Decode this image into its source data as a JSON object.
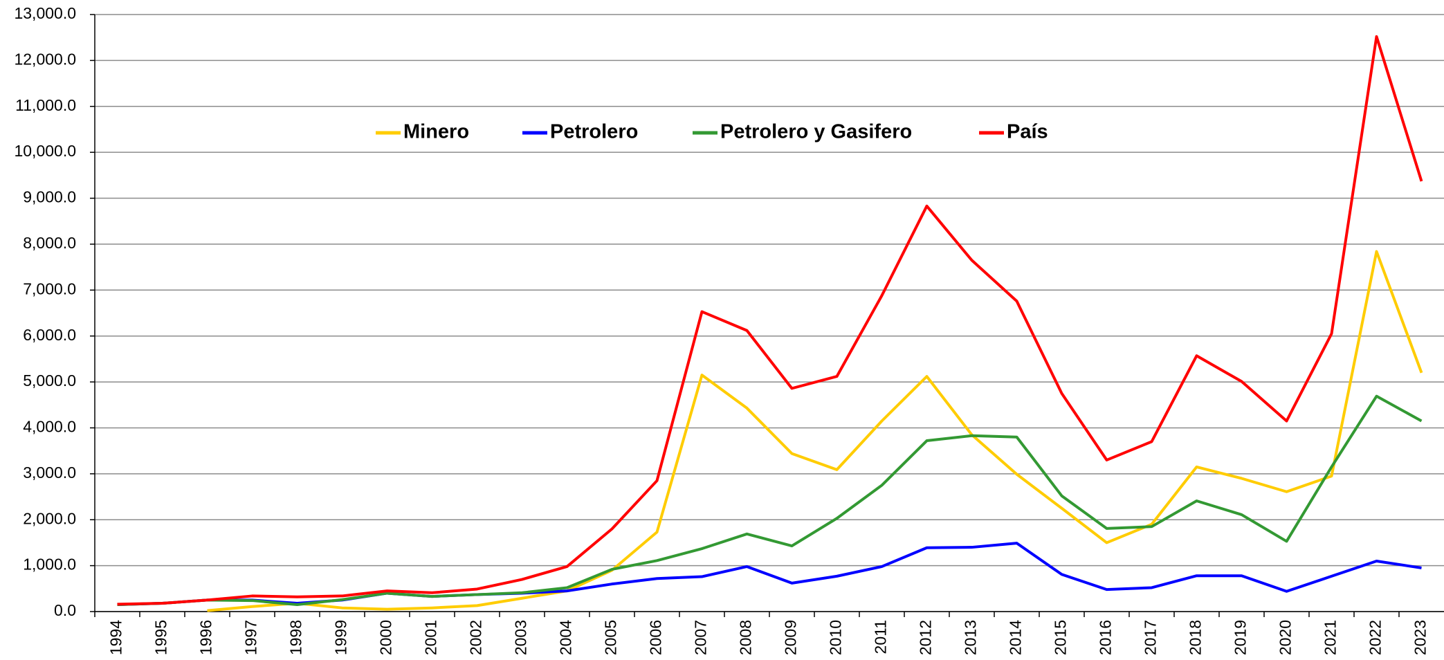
{
  "chart_data": {
    "type": "line",
    "categories": [
      "1994",
      "1995",
      "1996",
      "1997",
      "1998",
      "1999",
      "2000",
      "2001",
      "2002",
      "2003",
      "2004",
      "2005",
      "2006",
      "2007",
      "2008",
      "2009",
      "2010",
      "2011",
      "2012",
      "2013",
      "2014",
      "2015",
      "2016",
      "2017",
      "2018",
      "2019",
      "2020",
      "2021",
      "2022",
      "2023"
    ],
    "series": [
      {
        "name": "Minero",
        "color": "#ffcc00",
        "values": [
          null,
          null,
          20,
          110,
          180,
          80,
          50,
          80,
          130,
          290,
          450,
          900,
          1730,
          5150,
          4430,
          3440,
          3090,
          4150,
          5120,
          3850,
          2990,
          2250,
          1500,
          1900,
          3150,
          2900,
          2610,
          2950,
          7840,
          5200
        ]
      },
      {
        "name": "Petrolero",
        "color": "#0000ff",
        "values": [
          150,
          180,
          250,
          250,
          180,
          250,
          400,
          330,
          370,
          400,
          450,
          600,
          720,
          760,
          980,
          620,
          770,
          980,
          1390,
          1400,
          1490,
          810,
          480,
          520,
          780,
          780,
          440,
          770,
          1100,
          950
        ]
      },
      {
        "name": "Petrolero y Gasifero",
        "color": "#339933",
        "values": [
          150,
          180,
          250,
          240,
          150,
          260,
          400,
          330,
          370,
          410,
          520,
          920,
          1110,
          1370,
          1690,
          1430,
          2030,
          2750,
          3720,
          3830,
          3800,
          2520,
          1810,
          1850,
          2410,
          2110,
          1530,
          3150,
          4690,
          4150
        ]
      },
      {
        "name": "País",
        "color": "#ff0000",
        "values": [
          160,
          180,
          250,
          340,
          320,
          340,
          450,
          410,
          490,
          700,
          980,
          1800,
          2850,
          6530,
          6120,
          4860,
          5120,
          6880,
          8830,
          7650,
          6760,
          4750,
          3300,
          3700,
          5570,
          5010,
          4150,
          6050,
          12520,
          9370
        ]
      }
    ],
    "ylim": [
      0,
      13000
    ],
    "yticks": [
      {
        "value": 0,
        "label": "0.0"
      },
      {
        "value": 1000,
        "label": "1,000.0"
      },
      {
        "value": 2000,
        "label": "2,000.0"
      },
      {
        "value": 3000,
        "label": "3,000.0"
      },
      {
        "value": 4000,
        "label": "4,000.0"
      },
      {
        "value": 5000,
        "label": "5,000.0"
      },
      {
        "value": 6000,
        "label": "6,000.0"
      },
      {
        "value": 7000,
        "label": "7,000.0"
      },
      {
        "value": 8000,
        "label": "8,000.0"
      },
      {
        "value": 9000,
        "label": "9,000.0"
      },
      {
        "value": 10000,
        "label": "10,000.0"
      },
      {
        "value": 11000,
        "label": "11,000.0"
      },
      {
        "value": 12000,
        "label": "12,000.0"
      },
      {
        "value": 13000,
        "label": "13,000.0"
      }
    ],
    "grid": true,
    "legend": "top"
  }
}
